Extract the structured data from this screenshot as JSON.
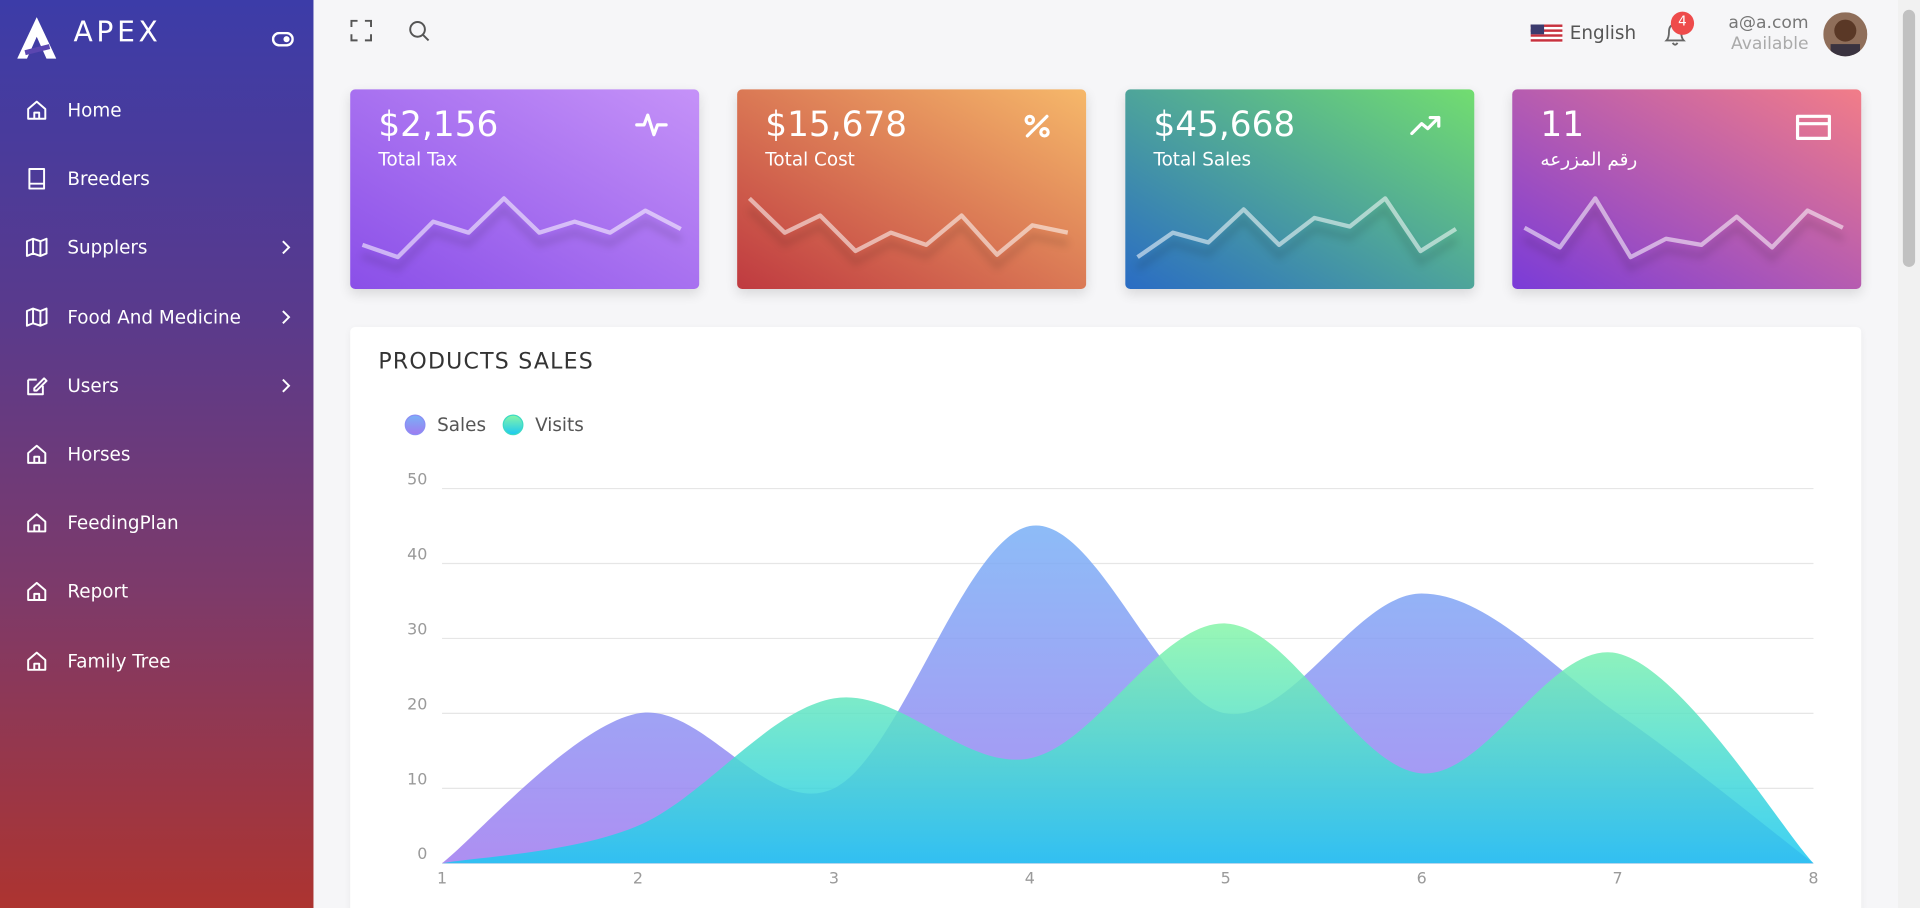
{
  "sidebar": {
    "brand": "APEX",
    "nav": [
      {
        "label": "Home",
        "submenu": false
      },
      {
        "label": "Breeders",
        "submenu": false
      },
      {
        "label": "Supplers",
        "submenu": true
      },
      {
        "label": "Food And Medicine",
        "submenu": true
      },
      {
        "label": "Users",
        "submenu": true
      },
      {
        "label": "Horses",
        "submenu": false
      },
      {
        "label": "FeedingPlan",
        "submenu": false
      },
      {
        "label": "Report",
        "submenu": false
      },
      {
        "label": "Family Tree",
        "submenu": false
      }
    ]
  },
  "header": {
    "language": "English",
    "notifications": 4,
    "user": "a@a.com",
    "status": "Available"
  },
  "cards": [
    {
      "value": "$2,156",
      "label": "Total Tax",
      "colors": [
        "#8a4fe8",
        "#c592f8"
      ],
      "spark": [
        15,
        5,
        34,
        25,
        53,
        25,
        34,
        25,
        43,
        28
      ]
    },
    {
      "value": "$15,678",
      "label": "Total Cost",
      "colors": [
        "#bf3a40",
        "#f6b86a"
      ],
      "spark": [
        53,
        25,
        39,
        10,
        25,
        15,
        39,
        7,
        31,
        25
      ]
    },
    {
      "value": "$45,668",
      "label": "Total Sales",
      "colors": [
        "#2a6cc4",
        "#72dd70"
      ],
      "spark": [
        5,
        25,
        17,
        44,
        15,
        37,
        30,
        53,
        10,
        28
      ]
    },
    {
      "value": "11",
      "label": "رقم المزرعه",
      "colors": [
        "#7a3bd8",
        "#f27d88"
      ],
      "spark": [
        29,
        13,
        53,
        5,
        20,
        15,
        38,
        13,
        43,
        29
      ]
    }
  ],
  "chart_data": {
    "type": "area",
    "title": "PRODUCTS SALES",
    "x": [
      1,
      2,
      3,
      4,
      5,
      6,
      7,
      8
    ],
    "xlim": [
      1,
      8
    ],
    "xticks": [
      1,
      2,
      3,
      4,
      5,
      6,
      7,
      8
    ],
    "ylim": [
      0,
      50
    ],
    "yticks": [
      0,
      10,
      20,
      30,
      40,
      50
    ],
    "grid": true,
    "series": [
      {
        "name": "Sales",
        "color": "#8b8ef4",
        "values": [
          0,
          20,
          10,
          45,
          20,
          36,
          20,
          0
        ]
      },
      {
        "name": "Visits",
        "color": "#3ddbc4",
        "values": [
          0,
          5,
          22,
          14,
          32,
          12,
          28,
          0
        ]
      }
    ]
  }
}
